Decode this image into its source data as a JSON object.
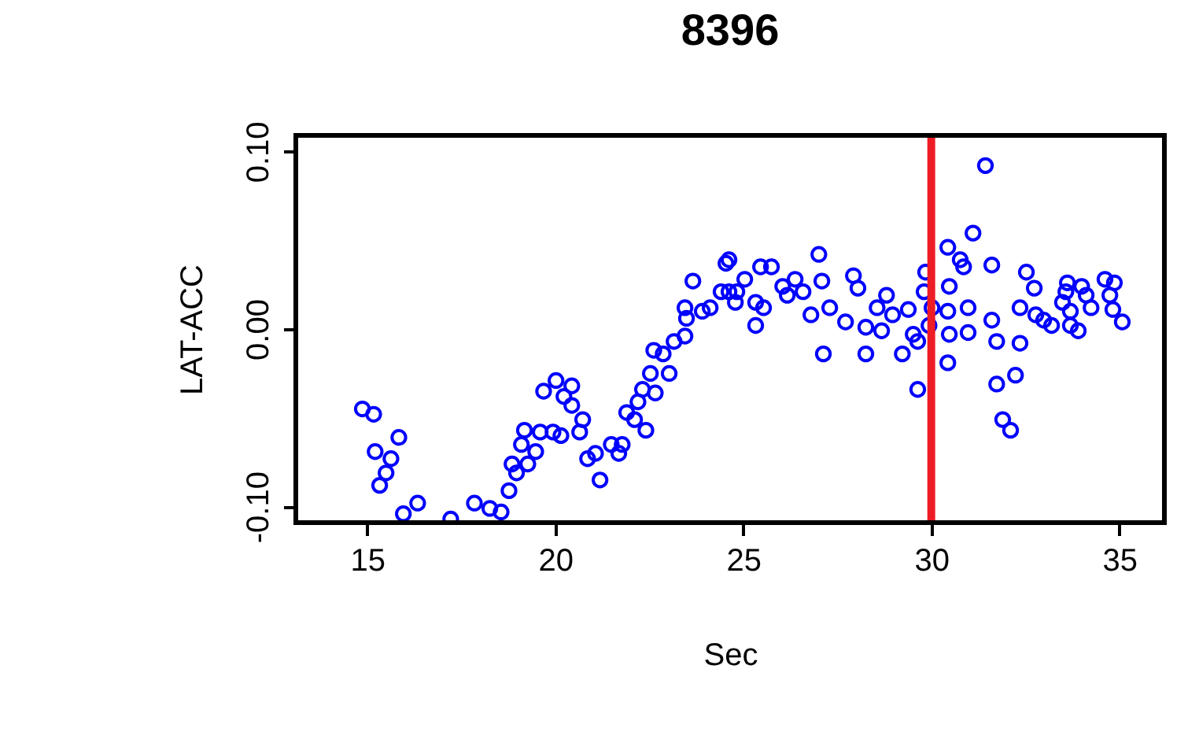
{
  "chart_data": {
    "type": "scatter",
    "title": "8396",
    "xlabel": "Sec",
    "ylabel": "LAT-ACC",
    "xlim": [
      13.1,
      36.2
    ],
    "ylim": [
      -0.109,
      0.109
    ],
    "xticks": [
      15,
      20,
      25,
      30,
      35
    ],
    "yticks": [
      {
        "value": -0.1,
        "label": "-0.10"
      },
      {
        "value": 0,
        "label": "0.00"
      },
      {
        "value": 0.1,
        "label": "0.10"
      }
    ],
    "marker": "circle",
    "grid": false,
    "ref_lines": [
      {
        "axis": "x",
        "value": 30,
        "color": "#ee1c25"
      }
    ],
    "series": [
      {
        "color": "#0000ff",
        "x": [
          14.87,
          15.17,
          15.21,
          15.33,
          15.5,
          15.63,
          15.84,
          15.96,
          16.34,
          17.22,
          17.85,
          18.26,
          18.56,
          18.77,
          18.97,
          18.85,
          19.27,
          19.1,
          19.48,
          19.18,
          19.6,
          19.94,
          20.15,
          20.65,
          20.73,
          20.44,
          20.23,
          19.69,
          20.02,
          20.44,
          20.86,
          21.07,
          21.19,
          21.49,
          21.78,
          21.69,
          21.9,
          22.11,
          22.2,
          22.41,
          22.32,
          22.66,
          22.53,
          23.03,
          22.62,
          22.87,
          23.16,
          23.45,
          23.49,
          23.45,
          23.91,
          24.12,
          23.66,
          24.41,
          24.54,
          24.83,
          24.62,
          24.62,
          25.04,
          24.79,
          25.33,
          25.46,
          25.75,
          25.33,
          25.54,
          26.05,
          26.38,
          26.17,
          26.59,
          27.01,
          27.09,
          26.8,
          27.3,
          27.72,
          27.93,
          28.05,
          27.13,
          28.26,
          28.26,
          28.56,
          28.81,
          28.68,
          28.97,
          29.23,
          29.39,
          29.52,
          29.81,
          29.85,
          29.64,
          29.64,
          30.02,
          29.94,
          30.44,
          31.11,
          30.77,
          30.86,
          30.48,
          30.44,
          30.48,
          30.44,
          30.98,
          30.98,
          31.44,
          31.61,
          31.61,
          31.74,
          32.36,
          31.74,
          32.24,
          31.9,
          32.11,
          32.53,
          32.74,
          32.36,
          32.78,
          32.99,
          33.2,
          33.62,
          33.58,
          33.49,
          33.7,
          34.0,
          34.12,
          34.25,
          33.7,
          33.91,
          34.62,
          34.87,
          34.75,
          34.83,
          35.08
        ],
        "values": [
          -0.045,
          -0.048,
          -0.069,
          -0.088,
          -0.081,
          -0.073,
          -0.061,
          -0.104,
          -0.098,
          -0.107,
          -0.098,
          -0.101,
          -0.103,
          -0.091,
          -0.081,
          -0.076,
          -0.076,
          -0.065,
          -0.069,
          -0.057,
          -0.058,
          -0.058,
          -0.06,
          -0.058,
          -0.051,
          -0.043,
          -0.038,
          -0.035,
          -0.029,
          -0.032,
          -0.073,
          -0.07,
          -0.085,
          -0.065,
          -0.065,
          -0.07,
          -0.047,
          -0.051,
          -0.041,
          -0.057,
          -0.034,
          -0.036,
          -0.025,
          -0.025,
          -0.012,
          -0.014,
          -0.007,
          -0.004,
          0.006,
          0.012,
          0.01,
          0.012,
          0.027,
          0.021,
          0.037,
          0.021,
          0.039,
          0.021,
          0.028,
          0.015,
          0.015,
          0.035,
          0.035,
          0.002,
          0.012,
          0.024,
          0.028,
          0.019,
          0.021,
          0.042,
          0.027,
          0.008,
          0.012,
          0.004,
          0.03,
          0.023,
          -0.014,
          -0.014,
          0.001,
          0.012,
          0.019,
          -0.001,
          0.008,
          -0.014,
          0.011,
          -0.003,
          0.021,
          0.032,
          -0.007,
          -0.034,
          0.012,
          0.002,
          0.046,
          0.054,
          0.039,
          0.035,
          0.024,
          0.01,
          -0.003,
          -0.019,
          0.012,
          -0.002,
          0.092,
          0.036,
          0.005,
          -0.007,
          -0.008,
          -0.031,
          -0.026,
          -0.051,
          -0.057,
          0.032,
          0.023,
          0.012,
          0.008,
          0.005,
          0.002,
          0.026,
          0.021,
          0.015,
          0.01,
          0.024,
          0.019,
          0.012,
          0.002,
          -0.001,
          0.028,
          0.026,
          0.019,
          0.011,
          0.004
        ]
      }
    ]
  }
}
